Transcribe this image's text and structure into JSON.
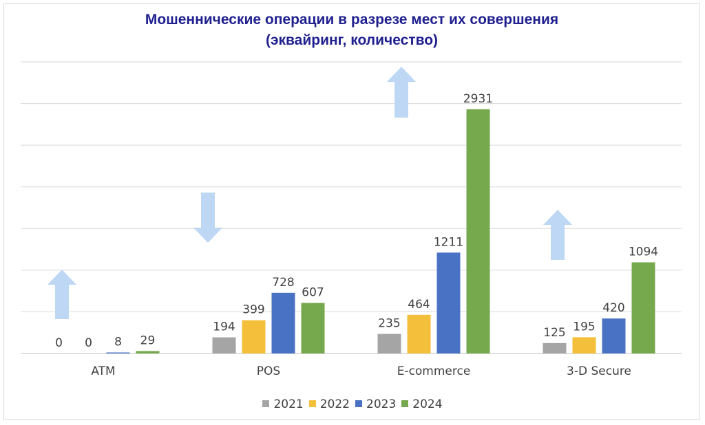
{
  "chart_data": {
    "type": "bar",
    "title": "Мошеннические операции в разрезе мест их совершения",
    "subtitle": "(эквайринг, количество)",
    "categories": [
      "ATM",
      "POS",
      "E-commerce",
      "3-D Secure"
    ],
    "series": [
      {
        "name": "2021",
        "color": "#a5a5a5",
        "values": [
          0,
          194,
          235,
          125
        ]
      },
      {
        "name": "2022",
        "color": "#f4c03b",
        "values": [
          0,
          399,
          464,
          195
        ]
      },
      {
        "name": "2023",
        "color": "#4a72c4",
        "values": [
          8,
          728,
          1211,
          420
        ]
      },
      {
        "name": "2024",
        "color": "#76a84e",
        "values": [
          29,
          607,
          2931,
          1094
        ]
      }
    ],
    "trend_arrows": [
      {
        "category": "ATM",
        "direction": "up",
        "color": "#bdd7f4"
      },
      {
        "category": "POS",
        "direction": "down",
        "color": "#bdd7f4"
      },
      {
        "category": "E-commerce",
        "direction": "up",
        "color": "#bdd7f4"
      },
      {
        "category": "3-D Secure",
        "direction": "up",
        "color": "#bdd7f4"
      }
    ],
    "ylim": [
      0,
      3500
    ],
    "grid": true,
    "y_axis_labels_shown": false,
    "legend_position": "bottom"
  }
}
